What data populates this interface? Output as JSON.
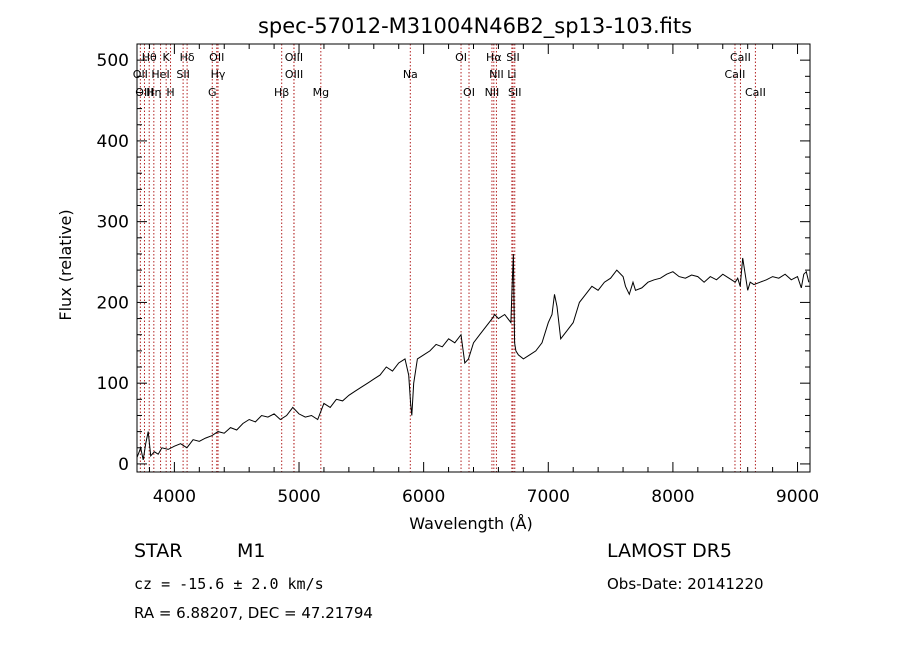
{
  "chart_data": {
    "type": "line",
    "title": "spec-57012-M31004N46B2_sp13-103.fits",
    "xlabel": "Wavelength (Å)",
    "ylabel": "Flux (relative)",
    "xlim": [
      3700,
      9100
    ],
    "ylim": [
      -10,
      520
    ],
    "xticks": [
      4000,
      5000,
      6000,
      7000,
      8000,
      9000
    ],
    "yticks": [
      0,
      100,
      200,
      300,
      400,
      500
    ],
    "grid": false,
    "series": [
      {
        "x": [
          3700,
          3730,
          3750,
          3770,
          3790,
          3810,
          3840,
          3870,
          3900,
          3950,
          4000,
          4050,
          4100,
          4150,
          4200,
          4250,
          4300,
          4350,
          4400,
          4450,
          4500,
          4550,
          4600,
          4650,
          4700,
          4750,
          4800,
          4850,
          4900,
          4950,
          5000,
          5050,
          5100,
          5150,
          5200,
          5250,
          5300,
          5350,
          5400,
          5450,
          5500,
          5550,
          5600,
          5650,
          5700,
          5750,
          5800,
          5850,
          5880,
          5895,
          5905,
          5920,
          5950,
          6000,
          6050,
          6100,
          6150,
          6200,
          6250,
          6300,
          6330,
          6360,
          6400,
          6450,
          6500,
          6550,
          6570,
          6600,
          6650,
          6700,
          6710,
          6720,
          6725,
          6730,
          6740,
          6760,
          6800,
          6850,
          6900,
          6950,
          7000,
          7030,
          7050,
          7070,
          7100,
          7150,
          7200,
          7250,
          7300,
          7350,
          7400,
          7450,
          7500,
          7550,
          7600,
          7620,
          7650,
          7680,
          7700,
          7750,
          7800,
          7850,
          7900,
          7950,
          8000,
          8050,
          8100,
          8150,
          8200,
          8250,
          8300,
          8350,
          8400,
          8450,
          8500,
          8520,
          8540,
          8560,
          8580,
          8600,
          8620,
          8650,
          8700,
          8750,
          8800,
          8850,
          8900,
          8950,
          9000,
          9030,
          9050,
          9070,
          9090
        ],
        "y": [
          8,
          20,
          5,
          25,
          40,
          10,
          15,
          12,
          20,
          18,
          22,
          25,
          20,
          30,
          28,
          32,
          35,
          40,
          38,
          45,
          42,
          50,
          55,
          52,
          60,
          58,
          62,
          55,
          60,
          70,
          62,
          58,
          60,
          55,
          75,
          70,
          80,
          78,
          85,
          90,
          95,
          100,
          105,
          110,
          120,
          115,
          125,
          130,
          110,
          75,
          60,
          100,
          130,
          135,
          140,
          148,
          145,
          155,
          150,
          160,
          125,
          130,
          150,
          160,
          170,
          180,
          185,
          180,
          185,
          175,
          220,
          260,
          200,
          150,
          140,
          135,
          130,
          135,
          140,
          150,
          175,
          185,
          210,
          195,
          155,
          165,
          175,
          200,
          210,
          220,
          215,
          225,
          230,
          240,
          232,
          220,
          210,
          225,
          215,
          218,
          225,
          228,
          230,
          235,
          238,
          232,
          230,
          234,
          232,
          225,
          232,
          228,
          235,
          230,
          225,
          230,
          220,
          255,
          235,
          215,
          225,
          222,
          225,
          228,
          232,
          230,
          235,
          228,
          232,
          218,
          235,
          238,
          225
        ]
      }
    ],
    "spectral_lines": [
      {
        "label": "Hθ",
        "x": 3798,
        "row": 1
      },
      {
        "label": "K",
        "x": 3934,
        "row": 1
      },
      {
        "label": "Hδ",
        "x": 4102,
        "row": 1
      },
      {
        "label": "OII",
        "x": 4340,
        "row": 1
      },
      {
        "label": "OIII",
        "x": 4959,
        "row": 1
      },
      {
        "label": "OI",
        "x": 6300,
        "row": 1
      },
      {
        "label": "Hα",
        "x": 6563,
        "row": 1
      },
      {
        "label": "SII",
        "x": 6717,
        "row": 1
      },
      {
        "label": "CaII",
        "x": 8542,
        "row": 1
      },
      {
        "label": "OII",
        "x": 3727,
        "row": 2
      },
      {
        "label": "HeI",
        "x": 3889,
        "row": 2
      },
      {
        "label": "SII",
        "x": 4070,
        "row": 2
      },
      {
        "label": "Hγ",
        "x": 4350,
        "row": 2
      },
      {
        "label": "OIII",
        "x": 4960,
        "row": 2
      },
      {
        "label": "Na",
        "x": 5893,
        "row": 2
      },
      {
        "label": "NII",
        "x": 6584,
        "row": 2
      },
      {
        "label": "Li",
        "x": 6708,
        "row": 2
      },
      {
        "label": "CaII",
        "x": 8498,
        "row": 2
      },
      {
        "label": "OIII",
        "x": 3760,
        "row": 3
      },
      {
        "label": "Hη",
        "x": 3835,
        "row": 3
      },
      {
        "label": "H",
        "x": 3969,
        "row": 3
      },
      {
        "label": "G",
        "x": 4304,
        "row": 3
      },
      {
        "label": "Hβ",
        "x": 4861,
        "row": 3
      },
      {
        "label": "Mg",
        "x": 5175,
        "row": 3
      },
      {
        "label": "OI",
        "x": 6364,
        "row": 3
      },
      {
        "label": "NII",
        "x": 6548,
        "row": 3
      },
      {
        "label": "SII",
        "x": 6731,
        "row": 3
      },
      {
        "label": "CaII",
        "x": 8662,
        "row": 3
      }
    ]
  },
  "info": {
    "object_class": "STAR",
    "subclass": "M1",
    "survey": "LAMOST DR5",
    "cz": "cz = -15.6 ± 2.0 km/s",
    "obs_date": "Obs-Date: 20141220",
    "coords": "RA =    6.88207, DEC =  47.21794"
  }
}
